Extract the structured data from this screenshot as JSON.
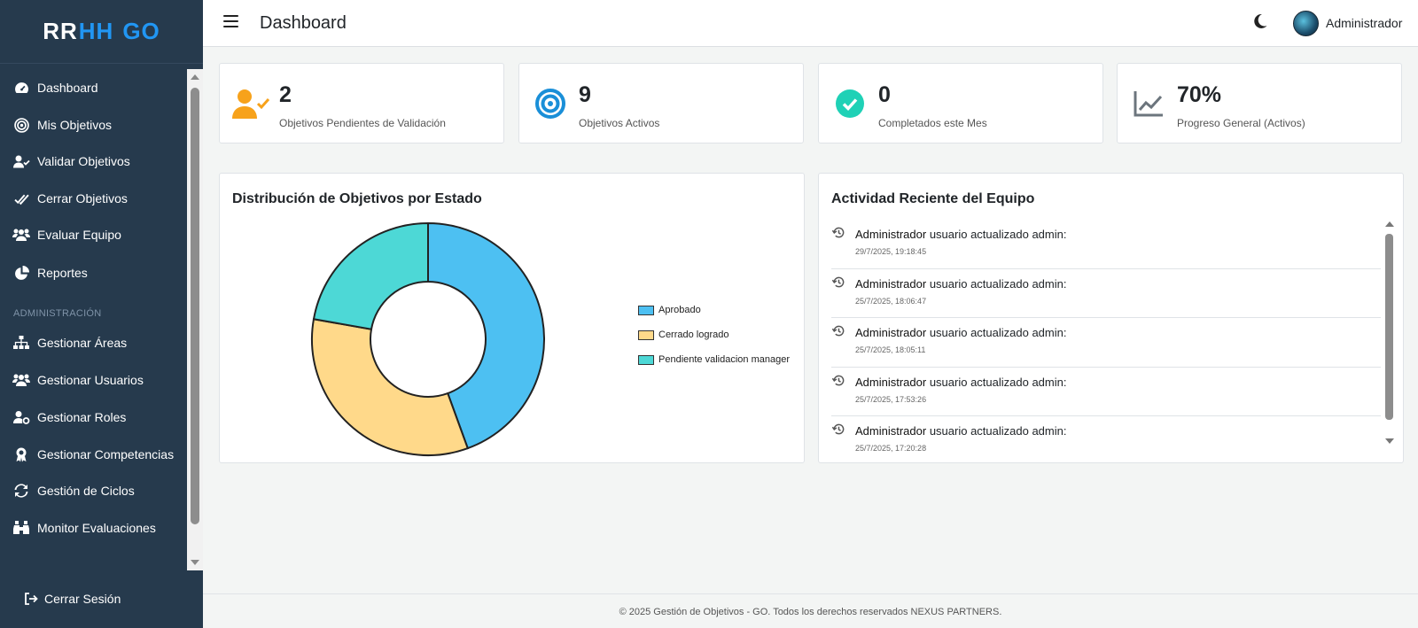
{
  "brand": {
    "part1": "RR",
    "part2": "HH",
    "part3": "GO"
  },
  "sidebar": {
    "items": [
      {
        "label": "Dashboard",
        "icon": "gauge-icon"
      },
      {
        "label": "Mis Objetivos",
        "icon": "target-icon"
      },
      {
        "label": "Validar Objetivos",
        "icon": "user-check-icon"
      },
      {
        "label": "Cerrar Objetivos",
        "icon": "double-check-icon"
      },
      {
        "label": "Evaluar Equipo",
        "icon": "users-icon"
      },
      {
        "label": "Reportes",
        "icon": "pie-chart-icon"
      }
    ],
    "section_label": "ADMINISTRACIÓN",
    "admin_items": [
      {
        "label": "Gestionar Áreas",
        "icon": "sitemap-icon"
      },
      {
        "label": "Gestionar Usuarios",
        "icon": "users-icon"
      },
      {
        "label": "Gestionar Roles",
        "icon": "user-gear-icon"
      },
      {
        "label": "Gestionar Competencias",
        "icon": "award-icon"
      },
      {
        "label": "Gestión de Ciclos",
        "icon": "sync-icon"
      },
      {
        "label": "Monitor Evaluaciones",
        "icon": "binoculars-icon"
      }
    ],
    "logout_label": "Cerrar Sesión"
  },
  "header": {
    "title": "Dashboard",
    "user_name": "Administrador"
  },
  "stats": [
    {
      "value": "2",
      "label": "Objetivos Pendientes de Validación",
      "icon": "user-check-icon",
      "color": "#f7a21b"
    },
    {
      "value": "9",
      "label": "Objetivos Activos",
      "icon": "bullseye-icon",
      "color": "#1a8fd8"
    },
    {
      "value": "0",
      "label": "Completados este Mes",
      "icon": "check-circle-icon",
      "color": "#1fd1b6"
    },
    {
      "value": "70%",
      "label": "Progreso General (Activos)",
      "icon": "line-chart-icon",
      "color": "#6c757d"
    }
  ],
  "chart": {
    "title": "Distribución de Objetivos por Estado"
  },
  "chart_data": {
    "type": "pie",
    "variant": "doughnut",
    "categories": [
      "Aprobado",
      "Cerrado logrado",
      "Pendiente validacion manager"
    ],
    "values": [
      4,
      3,
      2
    ],
    "colors": [
      "#4dc0f2",
      "#ffd98a",
      "#4dd8d6"
    ],
    "legend": "right"
  },
  "activity": {
    "title": "Actividad Reciente del Equipo",
    "items": [
      {
        "who": "Administrador",
        "action": "usuario actualizado admin:",
        "when": "29/7/2025, 19:18:45"
      },
      {
        "who": "Administrador",
        "action": "usuario actualizado admin:",
        "when": "25/7/2025, 18:06:47"
      },
      {
        "who": "Administrador",
        "action": "usuario actualizado admin:",
        "when": "25/7/2025, 18:05:11"
      },
      {
        "who": "Administrador",
        "action": "usuario actualizado admin:",
        "when": "25/7/2025, 17:53:26"
      },
      {
        "who": "Administrador",
        "action": "usuario actualizado admin:",
        "when": "25/7/2025, 17:20:28"
      }
    ]
  },
  "footer": {
    "text": "© 2025 Gestión de Objetivos - GO. Todos los derechos reservados NEXUS PARTNERS."
  }
}
